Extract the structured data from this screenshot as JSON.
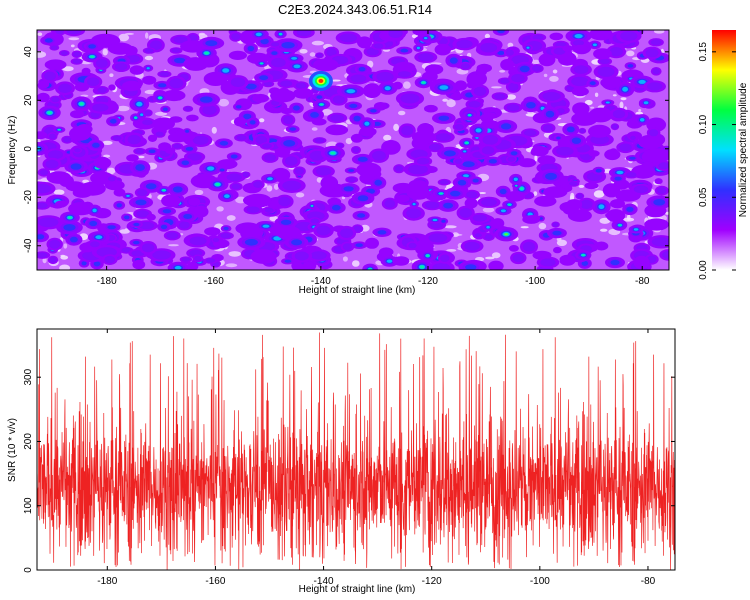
{
  "title": "C2E3.2024.343.06.51.R14",
  "chart_data": [
    {
      "type": "heatmap",
      "xlabel": "Height of straight line (km)",
      "ylabel": "Frequency (Hz)",
      "xlim": [
        -193,
        -75
      ],
      "ylim": [
        -50,
        49
      ],
      "xticks": [
        -180,
        -160,
        -140,
        -120,
        -100,
        -80
      ],
      "yticks": [
        -40,
        -20,
        0,
        20,
        40
      ],
      "colorbar": {
        "label": "Normalized spectral amplitude",
        "range": [
          0.0,
          0.165
        ],
        "ticks": [
          0.0,
          0.05,
          0.1,
          0.15
        ],
        "tick_labels": [
          "0.00",
          "0.05",
          "0.10",
          "0.15"
        ],
        "colormap": [
          "#ffffff",
          "#a000ff",
          "#3030ff",
          "#00e0ff",
          "#00ff40",
          "#ffff00",
          "#ff0000"
        ]
      },
      "peak": {
        "x": -140,
        "y": 28,
        "value": 0.16
      },
      "typical_value": 0.03,
      "grid": false,
      "legend": "right"
    },
    {
      "type": "line",
      "xlabel": "Height of straight line (km)",
      "ylabel": "SNR (10 * v/v)",
      "xlim": [
        -193,
        -75
      ],
      "ylim": [
        0,
        375
      ],
      "xticks": [
        -180,
        -160,
        -140,
        -120,
        -100,
        -80
      ],
      "yticks": [
        0,
        100,
        200,
        300
      ],
      "series": [
        {
          "color": "#ee2222",
          "mean": 130,
          "min": 0,
          "max": 370,
          "typical_low": 60,
          "typical_high": 220
        }
      ],
      "grid": false
    }
  ]
}
